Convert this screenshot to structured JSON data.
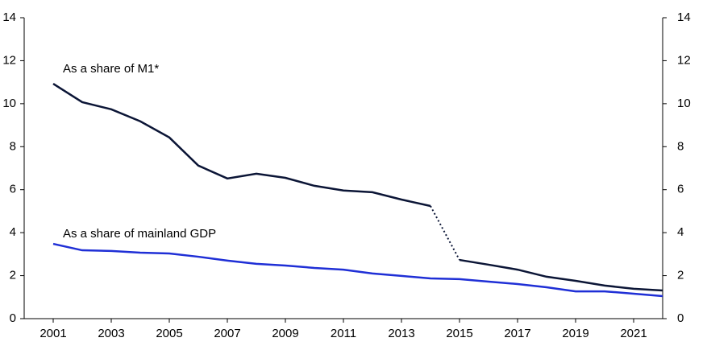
{
  "chart_data": {
    "type": "line",
    "x": [
      2001,
      2002,
      2003,
      2004,
      2005,
      2006,
      2007,
      2008,
      2009,
      2010,
      2011,
      2012,
      2013,
      2014,
      2015,
      2016,
      2017,
      2018,
      2019,
      2020,
      2021,
      2022
    ],
    "series": [
      {
        "name": "As a share of M1*",
        "color": "#0b1536",
        "dotted_from": 2014,
        "values": [
          10.93,
          10.07,
          9.74,
          9.18,
          8.43,
          7.12,
          6.52,
          6.74,
          6.55,
          6.18,
          5.96,
          5.88,
          5.54,
          5.24,
          2.73,
          2.51,
          2.28,
          1.95,
          1.76,
          1.54,
          1.39,
          1.31
        ]
      },
      {
        "name": "As a share of mainland GDP",
        "color": "#1f2fd6",
        "values": [
          3.48,
          3.18,
          3.15,
          3.07,
          3.03,
          2.88,
          2.7,
          2.55,
          2.47,
          2.36,
          2.28,
          2.1,
          1.99,
          1.87,
          1.84,
          1.72,
          1.61,
          1.46,
          1.27,
          1.27,
          1.16,
          1.05
        ]
      }
    ],
    "xlim": [
      2000,
      2022
    ],
    "xticks": [
      2001,
      2003,
      2005,
      2007,
      2009,
      2011,
      2013,
      2015,
      2017,
      2019,
      2021
    ],
    "ylim": [
      0,
      14
    ],
    "yticks": [
      0,
      2,
      4,
      6,
      8,
      10,
      12,
      14
    ],
    "y2lim": [
      0,
      14
    ],
    "y2ticks": [
      0,
      2,
      4,
      6,
      8,
      10,
      12,
      14
    ],
    "grid": false
  }
}
